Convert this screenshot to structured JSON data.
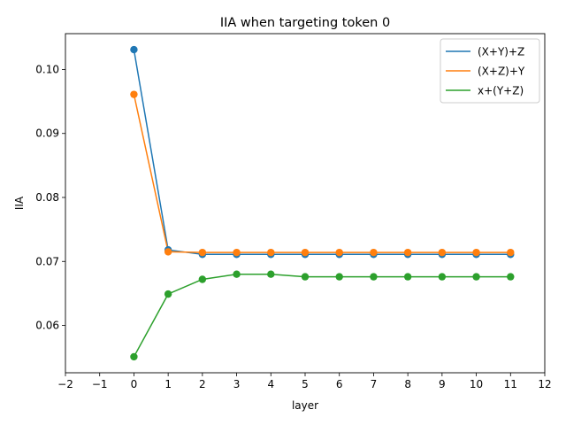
{
  "chart_data": {
    "type": "line",
    "title": "IIA when targeting token 0",
    "xlabel": "layer",
    "ylabel": "IIA",
    "xlim": [
      -2,
      12
    ],
    "ylim": [
      0.0526,
      0.1056
    ],
    "xticks": [
      -2,
      -1,
      0,
      1,
      2,
      3,
      4,
      5,
      6,
      7,
      8,
      9,
      10,
      11,
      12
    ],
    "xtick_labels": [
      "−2",
      "−1",
      "0",
      "1",
      "2",
      "3",
      "4",
      "5",
      "6",
      "7",
      "8",
      "9",
      "10",
      "11",
      "12"
    ],
    "yticks": [
      0.06,
      0.07,
      0.08,
      0.09,
      0.1
    ],
    "ytick_labels": [
      "0.06",
      "0.07",
      "0.08",
      "0.09",
      "0.10"
    ],
    "grid": false,
    "legend_position": "top-right",
    "x": [
      0,
      1,
      2,
      3,
      4,
      5,
      6,
      7,
      8,
      9,
      10,
      11
    ],
    "series": [
      {
        "name": "(X+Y)+Z",
        "color": "#1f77b4",
        "values": [
          0.1031,
          0.0718,
          0.0711,
          0.0711,
          0.0711,
          0.0711,
          0.0711,
          0.0711,
          0.0711,
          0.0711,
          0.0711,
          0.0711
        ]
      },
      {
        "name": "(X+Z)+Y",
        "color": "#ff7f0e",
        "values": [
          0.0961,
          0.0715,
          0.0714,
          0.0714,
          0.0714,
          0.0714,
          0.0714,
          0.0714,
          0.0714,
          0.0714,
          0.0714,
          0.0714
        ]
      },
      {
        "name": "x+(Y+Z)",
        "color": "#2ca02c",
        "values": [
          0.0551,
          0.0649,
          0.0672,
          0.068,
          0.068,
          0.0676,
          0.0676,
          0.0676,
          0.0676,
          0.0676,
          0.0676,
          0.0676
        ]
      }
    ]
  }
}
